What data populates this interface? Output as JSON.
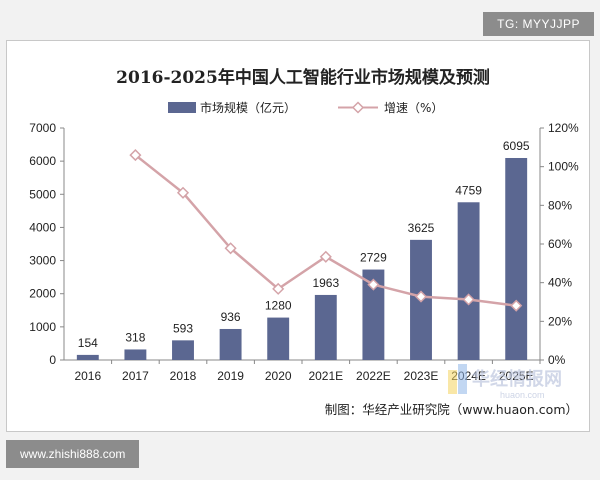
{
  "tags": {
    "top": "TG: MYYJJPP",
    "bottom": "www.zhishi888.com"
  },
  "watermark": {
    "brand": "华经情报网",
    "sub": "huaon.com"
  },
  "source": "制图：华经产业研究院（www.huaon.com）",
  "colors": {
    "bar": "#5b6791",
    "line": "#d4a3a8",
    "marker_fill": "#ffffff",
    "axis": "#888888"
  },
  "chart_data": {
    "type": "bar",
    "title": "2016-2025年中国人工智能行业市场规模及预测",
    "categories": [
      "2016",
      "2017",
      "2018",
      "2019",
      "2020",
      "2021E",
      "2022E",
      "2023E",
      "2024E",
      "2025E"
    ],
    "series": [
      {
        "name": "市场规模（亿元）",
        "type": "bar",
        "axis": "left",
        "values": [
          154,
          318,
          593,
          936,
          1280,
          1963,
          2729,
          3625,
          4759,
          6095
        ],
        "labels": [
          "154",
          "318",
          "593",
          "936",
          "1280",
          "1963",
          "2729",
          "3625",
          "4759",
          "6095"
        ]
      },
      {
        "name": "增速（%）",
        "type": "line",
        "axis": "right",
        "values": [
          null,
          106,
          86.5,
          57.8,
          36.8,
          53.4,
          39.0,
          32.8,
          31.3,
          28.1
        ]
      }
    ],
    "y_left": {
      "min": 0,
      "max": 7000,
      "ticks": [
        "0",
        "1000",
        "2000",
        "3000",
        "4000",
        "5000",
        "6000",
        "7000"
      ]
    },
    "y_right": {
      "min": 0,
      "max": 120,
      "ticks": [
        "0%",
        "20%",
        "40%",
        "60%",
        "80%",
        "100%",
        "120%"
      ]
    },
    "legend_position": "top-center",
    "grid": false
  }
}
